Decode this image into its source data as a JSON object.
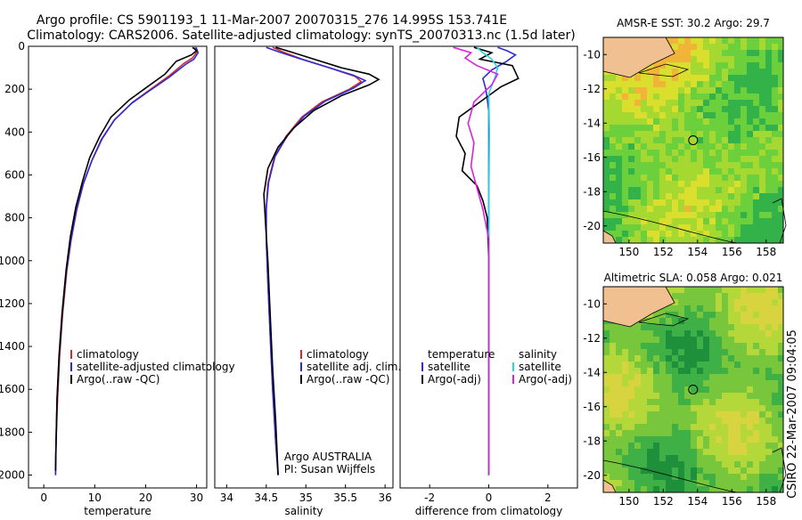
{
  "header": {
    "title_line1": "Argo profile: CS 5901193_1 11-Mar-2007 20070315_276 14.995S 153.741E",
    "title_line2": "Climatology: CARS2006. Satellite-adjusted climatology: synTS_20070313.nc (1.5d later)"
  },
  "side_caption": "CSIRO 22-Mar-2007 09:04:05",
  "chart_data": [
    {
      "type": "line",
      "name": "temperature-profile",
      "xlabel": "temperature",
      "xlim": [
        -3,
        32
      ],
      "ylim": [
        0,
        2060
      ],
      "xticks": [
        0,
        10,
        20,
        30
      ],
      "yticks": [
        0,
        200,
        400,
        600,
        800,
        1000,
        1200,
        1400,
        1600,
        1800,
        2000
      ],
      "colors": {
        "climatology": "#d42a2a",
        "satellite": "#2b2bd8",
        "argo": "#000000"
      },
      "legend": [
        "climatology",
        "satellite-adjusted climatology",
        "Argo(..raw -QC)"
      ],
      "series": [
        {
          "name": "climatology",
          "color": "#d42a2a",
          "points": [
            [
              29.6,
              5
            ],
            [
              30.1,
              25
            ],
            [
              29.2,
              55
            ],
            [
              27.5,
              80
            ],
            [
              24.5,
              140
            ],
            [
              21,
              200
            ],
            [
              17.5,
              260
            ],
            [
              14,
              340
            ],
            [
              11.5,
              430
            ],
            [
              9.5,
              530
            ],
            [
              7.8,
              640
            ],
            [
              6.5,
              760
            ],
            [
              5.4,
              900
            ],
            [
              4.5,
              1050
            ],
            [
              3.7,
              1250
            ],
            [
              3.1,
              1450
            ],
            [
              2.7,
              1650
            ],
            [
              2.4,
              1850
            ],
            [
              2.3,
              2000
            ]
          ]
        },
        {
          "name": "satellite",
          "color": "#2b2bd8",
          "points": [
            [
              29.9,
              5
            ],
            [
              30.3,
              30
            ],
            [
              29.5,
              60
            ],
            [
              27.8,
              85
            ],
            [
              24.6,
              145
            ],
            [
              20.9,
              205
            ],
            [
              17.3,
              265
            ],
            [
              13.8,
              345
            ],
            [
              11.3,
              435
            ],
            [
              9.4,
              535
            ],
            [
              7.7,
              645
            ],
            [
              6.4,
              765
            ],
            [
              5.3,
              905
            ],
            [
              4.4,
              1055
            ],
            [
              3.6,
              1255
            ],
            [
              3.0,
              1455
            ],
            [
              2.6,
              1655
            ],
            [
              2.4,
              1855
            ],
            [
              2.3,
              2000
            ]
          ]
        },
        {
          "name": "argo",
          "color": "#000000",
          "points": [
            [
              29.2,
              5
            ],
            [
              30.0,
              20
            ],
            [
              29.0,
              40
            ],
            [
              26.0,
              70
            ],
            [
              23.8,
              130
            ],
            [
              20.3,
              190
            ],
            [
              16.8,
              250
            ],
            [
              13.2,
              330
            ],
            [
              11.0,
              420
            ],
            [
              9.0,
              520
            ],
            [
              7.6,
              630
            ],
            [
              6.3,
              750
            ],
            [
              5.2,
              890
            ],
            [
              4.4,
              1040
            ],
            [
              3.6,
              1240
            ],
            [
              3.0,
              1440
            ],
            [
              2.6,
              1640
            ],
            [
              2.4,
              1840
            ],
            [
              2.3,
              1980
            ]
          ]
        }
      ]
    },
    {
      "type": "line",
      "name": "salinity-profile",
      "xlabel": "salinity",
      "xlim": [
        33.85,
        36.1
      ],
      "ylim": [
        0,
        2060
      ],
      "xticks": [
        34,
        34.5,
        35,
        35.5,
        36
      ],
      "legend": [
        "climatology",
        "satellite adj. clim.",
        "Argo(..raw -QC)"
      ],
      "annotation": [
        "Argo AUSTRALIA",
        "PI: Susan Wijffels"
      ],
      "series": [
        {
          "name": "climatology",
          "color": "#d42a2a",
          "points": [
            [
              34.58,
              5
            ],
            [
              34.7,
              25
            ],
            [
              34.95,
              60
            ],
            [
              35.3,
              100
            ],
            [
              35.62,
              140
            ],
            [
              35.7,
              165
            ],
            [
              35.55,
              200
            ],
            [
              35.2,
              260
            ],
            [
              34.95,
              330
            ],
            [
              34.75,
              420
            ],
            [
              34.6,
              520
            ],
            [
              34.52,
              640
            ],
            [
              34.5,
              760
            ],
            [
              34.5,
              900
            ],
            [
              34.52,
              1100
            ],
            [
              34.55,
              1350
            ],
            [
              34.58,
              1600
            ],
            [
              34.62,
              1850
            ],
            [
              34.65,
              2000
            ]
          ]
        },
        {
          "name": "satellite",
          "color": "#2b2bd8",
          "points": [
            [
              34.5,
              5
            ],
            [
              34.65,
              25
            ],
            [
              34.9,
              55
            ],
            [
              35.25,
              95
            ],
            [
              35.6,
              135
            ],
            [
              35.75,
              160
            ],
            [
              35.6,
              195
            ],
            [
              35.25,
              255
            ],
            [
              34.98,
              325
            ],
            [
              34.77,
              415
            ],
            [
              34.61,
              515
            ],
            [
              34.53,
              635
            ],
            [
              34.5,
              755
            ],
            [
              34.5,
              895
            ],
            [
              34.52,
              1095
            ],
            [
              34.55,
              1345
            ],
            [
              34.58,
              1595
            ],
            [
              34.62,
              1845
            ],
            [
              34.65,
              2000
            ]
          ]
        },
        {
          "name": "argo",
          "color": "#000000",
          "points": [
            [
              34.62,
              5
            ],
            [
              34.8,
              25
            ],
            [
              35.1,
              60
            ],
            [
              35.45,
              100
            ],
            [
              35.8,
              130
            ],
            [
              35.92,
              155
            ],
            [
              35.8,
              180
            ],
            [
              35.45,
              230
            ],
            [
              35.1,
              300
            ],
            [
              34.85,
              380
            ],
            [
              34.65,
              470
            ],
            [
              34.52,
              570
            ],
            [
              34.47,
              690
            ],
            [
              34.49,
              820
            ],
            [
              34.52,
              1000
            ],
            [
              34.55,
              1250
            ],
            [
              34.58,
              1500
            ],
            [
              34.62,
              1750
            ],
            [
              34.65,
              2000
            ]
          ]
        }
      ]
    },
    {
      "type": "line",
      "name": "difference-profile",
      "xlabel": "difference from climatology",
      "xlim": [
        -3,
        3
      ],
      "ylim": [
        0,
        2060
      ],
      "xticks": [
        -2,
        0,
        2
      ],
      "legend_left": [
        "temperature",
        "satellite",
        "Argo(-adj)"
      ],
      "legend_right": [
        "salinity",
        "satellite",
        "Argo(-adj)"
      ],
      "series": [
        {
          "name": "temperature satellite",
          "color": "#2b2bd8",
          "points": [
            [
              0.3,
              5
            ],
            [
              0.6,
              20
            ],
            [
              0.9,
              40
            ],
            [
              0.6,
              70
            ],
            [
              0.1,
              110
            ],
            [
              -0.2,
              150
            ],
            [
              -0.1,
              200
            ],
            [
              0,
              300
            ],
            [
              0,
              2000
            ]
          ]
        },
        {
          "name": "temperature argo",
          "color": "#000000",
          "points": [
            [
              -0.5,
              5
            ],
            [
              0.1,
              30
            ],
            [
              -0.3,
              60
            ],
            [
              0.8,
              90
            ],
            [
              1.0,
              150
            ],
            [
              0.4,
              190
            ],
            [
              -0.3,
              260
            ],
            [
              -1.0,
              330
            ],
            [
              -1.1,
              420
            ],
            [
              -0.8,
              500
            ],
            [
              -0.9,
              580
            ],
            [
              -0.4,
              650
            ],
            [
              -0.2,
              720
            ],
            [
              -0.05,
              800
            ],
            [
              0,
              1000
            ],
            [
              0,
              2000
            ]
          ]
        },
        {
          "name": "salinity satellite",
          "color": "#22d7e4",
          "points": [
            [
              -0.4,
              5
            ],
            [
              -0.2,
              30
            ],
            [
              0.1,
              60
            ],
            [
              0.3,
              100
            ],
            [
              0.2,
              150
            ],
            [
              0,
              220
            ],
            [
              0.02,
              400
            ],
            [
              0,
              800
            ],
            [
              0,
              2000
            ]
          ]
        },
        {
          "name": "salinity argo",
          "color": "#e01ee0",
          "points": [
            [
              -1.2,
              5
            ],
            [
              -0.6,
              30
            ],
            [
              -0.8,
              55
            ],
            [
              -0.4,
              90
            ],
            [
              0.3,
              130
            ],
            [
              0.1,
              180
            ],
            [
              -0.5,
              260
            ],
            [
              -0.7,
              360
            ],
            [
              -0.5,
              450
            ],
            [
              -0.6,
              560
            ],
            [
              -0.4,
              660
            ],
            [
              -0.2,
              760
            ],
            [
              0,
              900
            ],
            [
              0,
              2000
            ]
          ]
        }
      ]
    },
    {
      "type": "heatmap",
      "name": "sst-map",
      "title": "AMSR-E SST: 30.2 Argo: 29.7",
      "xticks": [
        150,
        152,
        154,
        156,
        158
      ],
      "yticks": [
        -10,
        -12,
        -14,
        -16,
        -18,
        -20
      ],
      "xlim": [
        148.5,
        159
      ],
      "ylim": [
        -21,
        -9
      ],
      "argo_position": [
        153.74,
        -15.0
      ],
      "colors": [
        "#33b24a",
        "#6ccf3c",
        "#a6d832",
        "#d9df2c",
        "#f2b438"
      ],
      "land_color": "#f0c090"
    },
    {
      "type": "heatmap",
      "name": "sla-map",
      "title": "Altimetric SLA: 0.058 Argo: 0.021",
      "xticks": [
        150,
        152,
        154,
        156,
        158
      ],
      "yticks": [
        -10,
        -12,
        -14,
        -16,
        -18,
        -20
      ],
      "xlim": [
        148.5,
        159
      ],
      "ylim": [
        -21,
        -9
      ],
      "argo_position": [
        153.74,
        -15.0
      ],
      "colors": [
        "#1e8f3a",
        "#3fb046",
        "#77c63c",
        "#b4d73a",
        "#d8d440"
      ],
      "land_color": "#f0c090"
    }
  ]
}
